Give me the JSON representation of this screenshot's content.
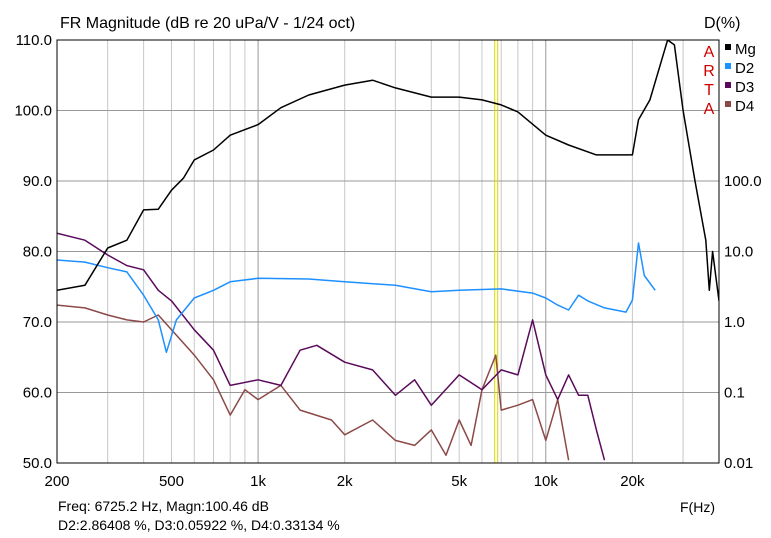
{
  "chart_data": {
    "type": "line",
    "title": "FR Magnitude (dB re 20 uPa/V - 1/24 oct)",
    "xlabel": "F(Hz)",
    "ylabel_right": "D(%)",
    "x_scale": "log",
    "xlim": [
      200,
      40000
    ],
    "ylim": [
      50,
      110
    ],
    "y_right_scale": "log",
    "y_right_lim": [
      0.01,
      10000
    ],
    "grid": true,
    "legend_placement": "top-right",
    "x_ticks": [
      200,
      500,
      1000,
      2000,
      5000,
      10000,
      20000
    ],
    "x_tick_labels": [
      "200",
      "500",
      "1k",
      "2k",
      "5k",
      "10k",
      "20k"
    ],
    "y_ticks": [
      50,
      60,
      70,
      80,
      90,
      100,
      110
    ],
    "y_tick_labels": [
      "50.0",
      "60.0",
      "70.0",
      "80.0",
      "90.0",
      "100.0",
      "110.0"
    ],
    "y_right_ticks": [
      0.01,
      0.1,
      1,
      10,
      100
    ],
    "y_right_tick_labels": [
      "0.01",
      "0.1",
      "1.0",
      "10.0",
      "100.0"
    ],
    "logo_letters": [
      "A",
      "R",
      "T",
      "A"
    ],
    "cursor_freq": 6725.2,
    "series": [
      {
        "name": "Mg",
        "color": "#000000",
        "y_axis": "left_dB",
        "x": [
          200,
          250,
          300,
          350,
          400,
          450,
          500,
          550,
          600,
          700,
          800,
          1000,
          1200,
          1500,
          2000,
          2500,
          3000,
          4000,
          5000,
          6000,
          7000,
          8000,
          10000,
          12000,
          15000,
          18000,
          20000,
          21000,
          23000,
          25000,
          26500,
          28000,
          30000,
          33000,
          36000,
          37000,
          38000,
          40000
        ],
        "y": [
          74.5,
          75.2,
          80.5,
          81.6,
          85.9,
          86,
          88.7,
          90.4,
          93,
          94.4,
          96.5,
          98,
          100.4,
          102.2,
          103.6,
          104.3,
          103.2,
          101.9,
          101.9,
          101.5,
          100.8,
          99.8,
          96.5,
          95.1,
          93.7,
          93.7,
          93.7,
          98.7,
          101.5,
          106.5,
          110,
          109.3,
          100,
          90,
          81.6,
          74.5,
          80,
          73
        ]
      },
      {
        "name": "D2",
        "color": "#1e90ff",
        "y_axis": "left_dB",
        "x": [
          200,
          250,
          300,
          350,
          400,
          450,
          480,
          520,
          600,
          700,
          800,
          1000,
          1500,
          2000,
          3000,
          4000,
          5000,
          7000,
          9000,
          10000,
          11000,
          12000,
          13000,
          14000,
          16000,
          19000,
          20000,
          21000,
          22000,
          24000
        ],
        "y": [
          78.8,
          78.5,
          77.7,
          77.1,
          73.8,
          70.3,
          65.7,
          70.3,
          73.4,
          74.5,
          75.7,
          76.2,
          76.1,
          75.7,
          75.2,
          74.3,
          74.5,
          74.7,
          74.1,
          73.4,
          72.4,
          71.7,
          73.8,
          73,
          72,
          71.4,
          73.1,
          81.2,
          76.6,
          74.5
        ]
      },
      {
        "name": "D3",
        "color": "#5a0a5a",
        "y_axis": "left_dB",
        "x": [
          200,
          250,
          300,
          350,
          400,
          450,
          500,
          600,
          700,
          800,
          1000,
          1200,
          1400,
          1600,
          2000,
          2500,
          3000,
          3500,
          4000,
          5000,
          6000,
          7000,
          8000,
          9000,
          10000,
          11000,
          12000,
          13000,
          14000,
          15000,
          16000
        ],
        "y": [
          82.6,
          81.6,
          79.5,
          78,
          77.4,
          74.5,
          73,
          68.9,
          66,
          61,
          61.8,
          61,
          66,
          66.7,
          64.3,
          63.2,
          59.6,
          61.8,
          58.2,
          62.5,
          60.4,
          63.2,
          62.5,
          70.3,
          62.5,
          59,
          62.5,
          59.6,
          59.6,
          54.7,
          50.4
        ]
      },
      {
        "name": "D4",
        "color": "#8b4a48",
        "y_axis": "left_dB",
        "x": [
          200,
          250,
          300,
          350,
          400,
          450,
          500,
          600,
          700,
          800,
          900,
          1000,
          1200,
          1400,
          1800,
          2000,
          2500,
          3000,
          3500,
          4000,
          4500,
          5000,
          5500,
          6000,
          6700,
          7000,
          8000,
          9000,
          10000,
          11000,
          12000
        ],
        "y": [
          72.4,
          72,
          71,
          70.3,
          70,
          71,
          68.9,
          65.3,
          61.8,
          56.8,
          60.4,
          59,
          61,
          57.5,
          56.1,
          54,
          56.1,
          53.2,
          52.5,
          54.7,
          51.1,
          56.1,
          52.5,
          60.4,
          65.3,
          57.5,
          58.2,
          59,
          53.2,
          59,
          50.4
        ]
      }
    ]
  },
  "readout": {
    "line1": "Freq: 6725.2 Hz, Magn:100.46 dB",
    "line2": "D2:2.86408 %, D3:0.05922 %, D4:0.33134 %"
  }
}
